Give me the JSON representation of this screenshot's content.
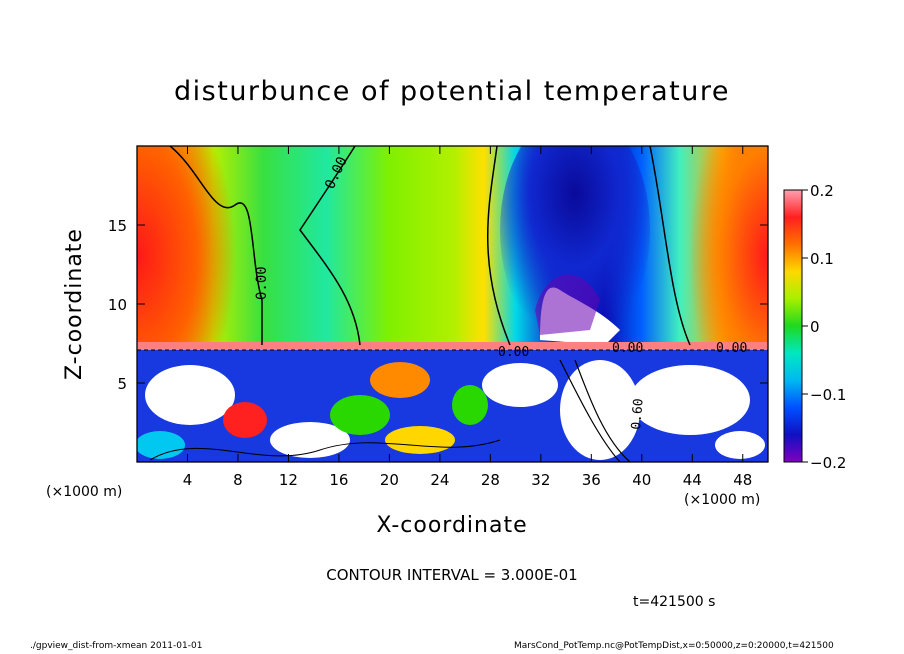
{
  "title": "disturbunce of potential temperature",
  "chart_data": {
    "type": "heatmap",
    "title": "disturbunce of potential temperature",
    "xlabel": "X-coordinate",
    "ylabel": "Z-coordinate",
    "x_unit": "(×1000 m)",
    "z_unit": "",
    "xlim": [
      0,
      50
    ],
    "ylim": [
      0,
      20
    ],
    "x_ticks": [
      4,
      8,
      12,
      16,
      20,
      24,
      28,
      32,
      36,
      40,
      44,
      48
    ],
    "y_ticks": [
      5,
      10,
      15
    ],
    "colorbar": {
      "range": [
        -0.2,
        0.2
      ],
      "ticks": [
        "0.2",
        "0.1",
        "0",
        "−0.1",
        "−0.2"
      ],
      "colors": [
        "#ff9aa8",
        "#ff2020",
        "#ff8a00",
        "#ffd600",
        "#b8f000",
        "#28d800",
        "#00e8a0",
        "#00c8f0",
        "#0064ff",
        "#1010c8",
        "#8800c0"
      ]
    },
    "contour_labels": [
      "0.00",
      "0.00",
      "0.00",
      "0.00",
      "0.60",
      "0.00"
    ],
    "contour_interval": "CONTOUR INTERVAL = 3.000E-01",
    "features": [
      {
        "name": "positive anomaly",
        "x_range": [
          0,
          6
        ],
        "z_range": [
          7,
          16
        ],
        "value": 0.15
      },
      {
        "name": "negative anomaly core",
        "x_range": [
          31,
          41
        ],
        "z_range": [
          7,
          20
        ],
        "value": -0.2
      },
      {
        "name": "positive anomaly",
        "x_range": [
          45,
          50
        ],
        "z_range": [
          7,
          16
        ],
        "value": 0.15
      }
    ]
  },
  "time": "t=421500 s",
  "footer_left": "./gpview_dist-from-xmean   2011-01-01",
  "footer_right": "MarsCond_PotTemp.nc@PotTempDist,x=0:50000,z=0:20000,t=421500",
  "colors": {
    "background": "#ffffff",
    "frame": "#000000"
  }
}
